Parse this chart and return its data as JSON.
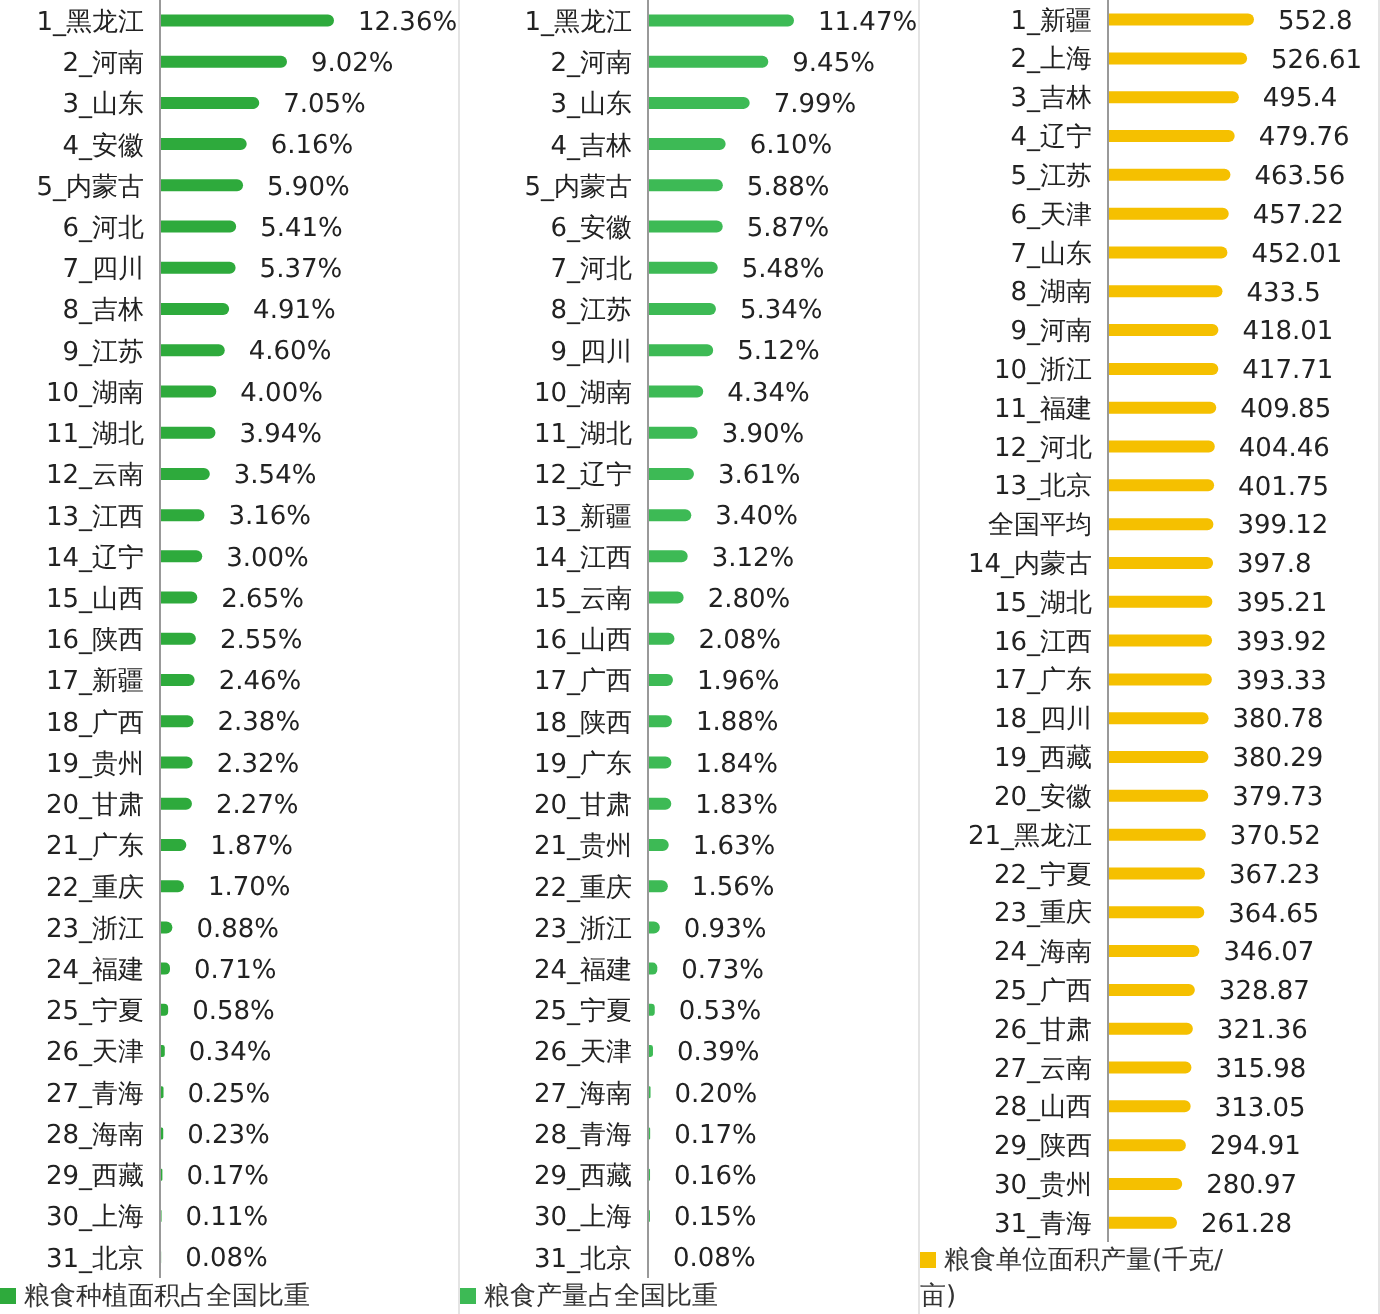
{
  "chart_data": [
    {
      "type": "bar",
      "orientation": "horizontal",
      "categories": [
        "1_黑龙江",
        "2_河南",
        "3_山东",
        "4_安徽",
        "5_内蒙古",
        "6_河北",
        "7_四川",
        "8_吉林",
        "9_江苏",
        "10_湖南",
        "11_湖北",
        "12_云南",
        "13_江西",
        "14_辽宁",
        "15_山西",
        "16_陕西",
        "17_新疆",
        "18_广西",
        "19_贵州",
        "20_甘肃",
        "21_广东",
        "22_重庆",
        "23_浙江",
        "24_福建",
        "25_宁夏",
        "26_天津",
        "27_青海",
        "28_海南",
        "29_西藏",
        "30_上海",
        "31_北京"
      ],
      "series": [
        {
          "name": "粮食种植面积占全国比重",
          "color": "#2eaa3c",
          "values": [
            12.36,
            9.02,
            7.05,
            6.16,
            5.9,
            5.41,
            5.37,
            4.91,
            4.6,
            4.0,
            3.94,
            3.54,
            3.16,
            3.0,
            2.65,
            2.55,
            2.46,
            2.38,
            2.32,
            2.27,
            1.87,
            1.7,
            0.88,
            0.71,
            0.58,
            0.34,
            0.25,
            0.23,
            0.17,
            0.11,
            0.08
          ],
          "value_labels": [
            "12.36%",
            "9.02%",
            "7.05%",
            "6.16%",
            "5.90%",
            "5.41%",
            "5.37%",
            "4.91%",
            "4.60%",
            "4.00%",
            "3.94%",
            "3.54%",
            "3.16%",
            "3.00%",
            "2.65%",
            "2.55%",
            "2.46%",
            "2.38%",
            "2.32%",
            "2.27%",
            "1.87%",
            "1.70%",
            "0.88%",
            "0.71%",
            "0.58%",
            "0.34%",
            "0.25%",
            "0.23%",
            "0.17%",
            "0.11%",
            "0.08%"
          ]
        }
      ],
      "legend": "bottom",
      "tick_labels": "y"
    },
    {
      "type": "bar",
      "orientation": "horizontal",
      "categories": [
        "1_黑龙江",
        "2_河南",
        "3_山东",
        "4_吉林",
        "5_内蒙古",
        "6_安徽",
        "7_河北",
        "8_江苏",
        "9_四川",
        "10_湖南",
        "11_湖北",
        "12_辽宁",
        "13_新疆",
        "14_江西",
        "15_云南",
        "16_山西",
        "17_广西",
        "18_陕西",
        "19_广东",
        "20_甘肃",
        "21_贵州",
        "22_重庆",
        "23_浙江",
        "24_福建",
        "25_宁夏",
        "26_天津",
        "27_海南",
        "28_青海",
        "29_西藏",
        "30_上海",
        "31_北京"
      ],
      "series": [
        {
          "name": "粮食产量占全国比重",
          "color": "#3dba55",
          "values": [
            11.47,
            9.45,
            7.99,
            6.1,
            5.88,
            5.87,
            5.48,
            5.34,
            5.12,
            4.34,
            3.9,
            3.61,
            3.4,
            3.12,
            2.8,
            2.08,
            1.96,
            1.88,
            1.84,
            1.83,
            1.63,
            1.56,
            0.93,
            0.73,
            0.53,
            0.39,
            0.2,
            0.17,
            0.16,
            0.15,
            0.08
          ],
          "value_labels": [
            "11.47%",
            "9.45%",
            "7.99%",
            "6.10%",
            "5.88%",
            "5.87%",
            "5.48%",
            "5.34%",
            "5.12%",
            "4.34%",
            "3.90%",
            "3.61%",
            "3.40%",
            "3.12%",
            "2.80%",
            "2.08%",
            "1.96%",
            "1.88%",
            "1.84%",
            "1.83%",
            "1.63%",
            "1.56%",
            "0.93%",
            "0.73%",
            "0.53%",
            "0.39%",
            "0.20%",
            "0.17%",
            "0.16%",
            "0.15%",
            "0.08%"
          ]
        }
      ],
      "legend": "bottom",
      "tick_labels": "y"
    },
    {
      "type": "bar",
      "orientation": "horizontal",
      "categories": [
        "1_新疆",
        "2_上海",
        "3_吉林",
        "4_辽宁",
        "5_江苏",
        "6_天津",
        "7_山东",
        "8_湖南",
        "9_河南",
        "10_浙江",
        "11_福建",
        "12_河北",
        "13_北京",
        "全国平均",
        "14_内蒙古",
        "15_湖北",
        "16_江西",
        "17_广东",
        "18_四川",
        "19_西藏",
        "20_安徽",
        "21_黑龙江",
        "22_宁夏",
        "23_重庆",
        "24_海南",
        "25_广西",
        "26_甘肃",
        "27_云南",
        "28_山西",
        "29_陕西",
        "30_贵州",
        "31_青海"
      ],
      "series": [
        {
          "name": "粮食单位面积产量(千克/亩)",
          "color": "#f5c000",
          "values": [
            552.8,
            526.61,
            495.4,
            479.76,
            463.56,
            457.22,
            452.01,
            433.5,
            418.01,
            417.71,
            409.85,
            404.46,
            401.75,
            399.12,
            397.8,
            395.21,
            393.92,
            393.33,
            380.78,
            380.29,
            379.73,
            370.52,
            367.23,
            364.65,
            346.07,
            328.87,
            321.36,
            315.98,
            313.05,
            294.91,
            280.97,
            261.28
          ]
        }
      ],
      "data_labels": true,
      "legend": "bottom",
      "tick_labels": "y"
    }
  ]
}
